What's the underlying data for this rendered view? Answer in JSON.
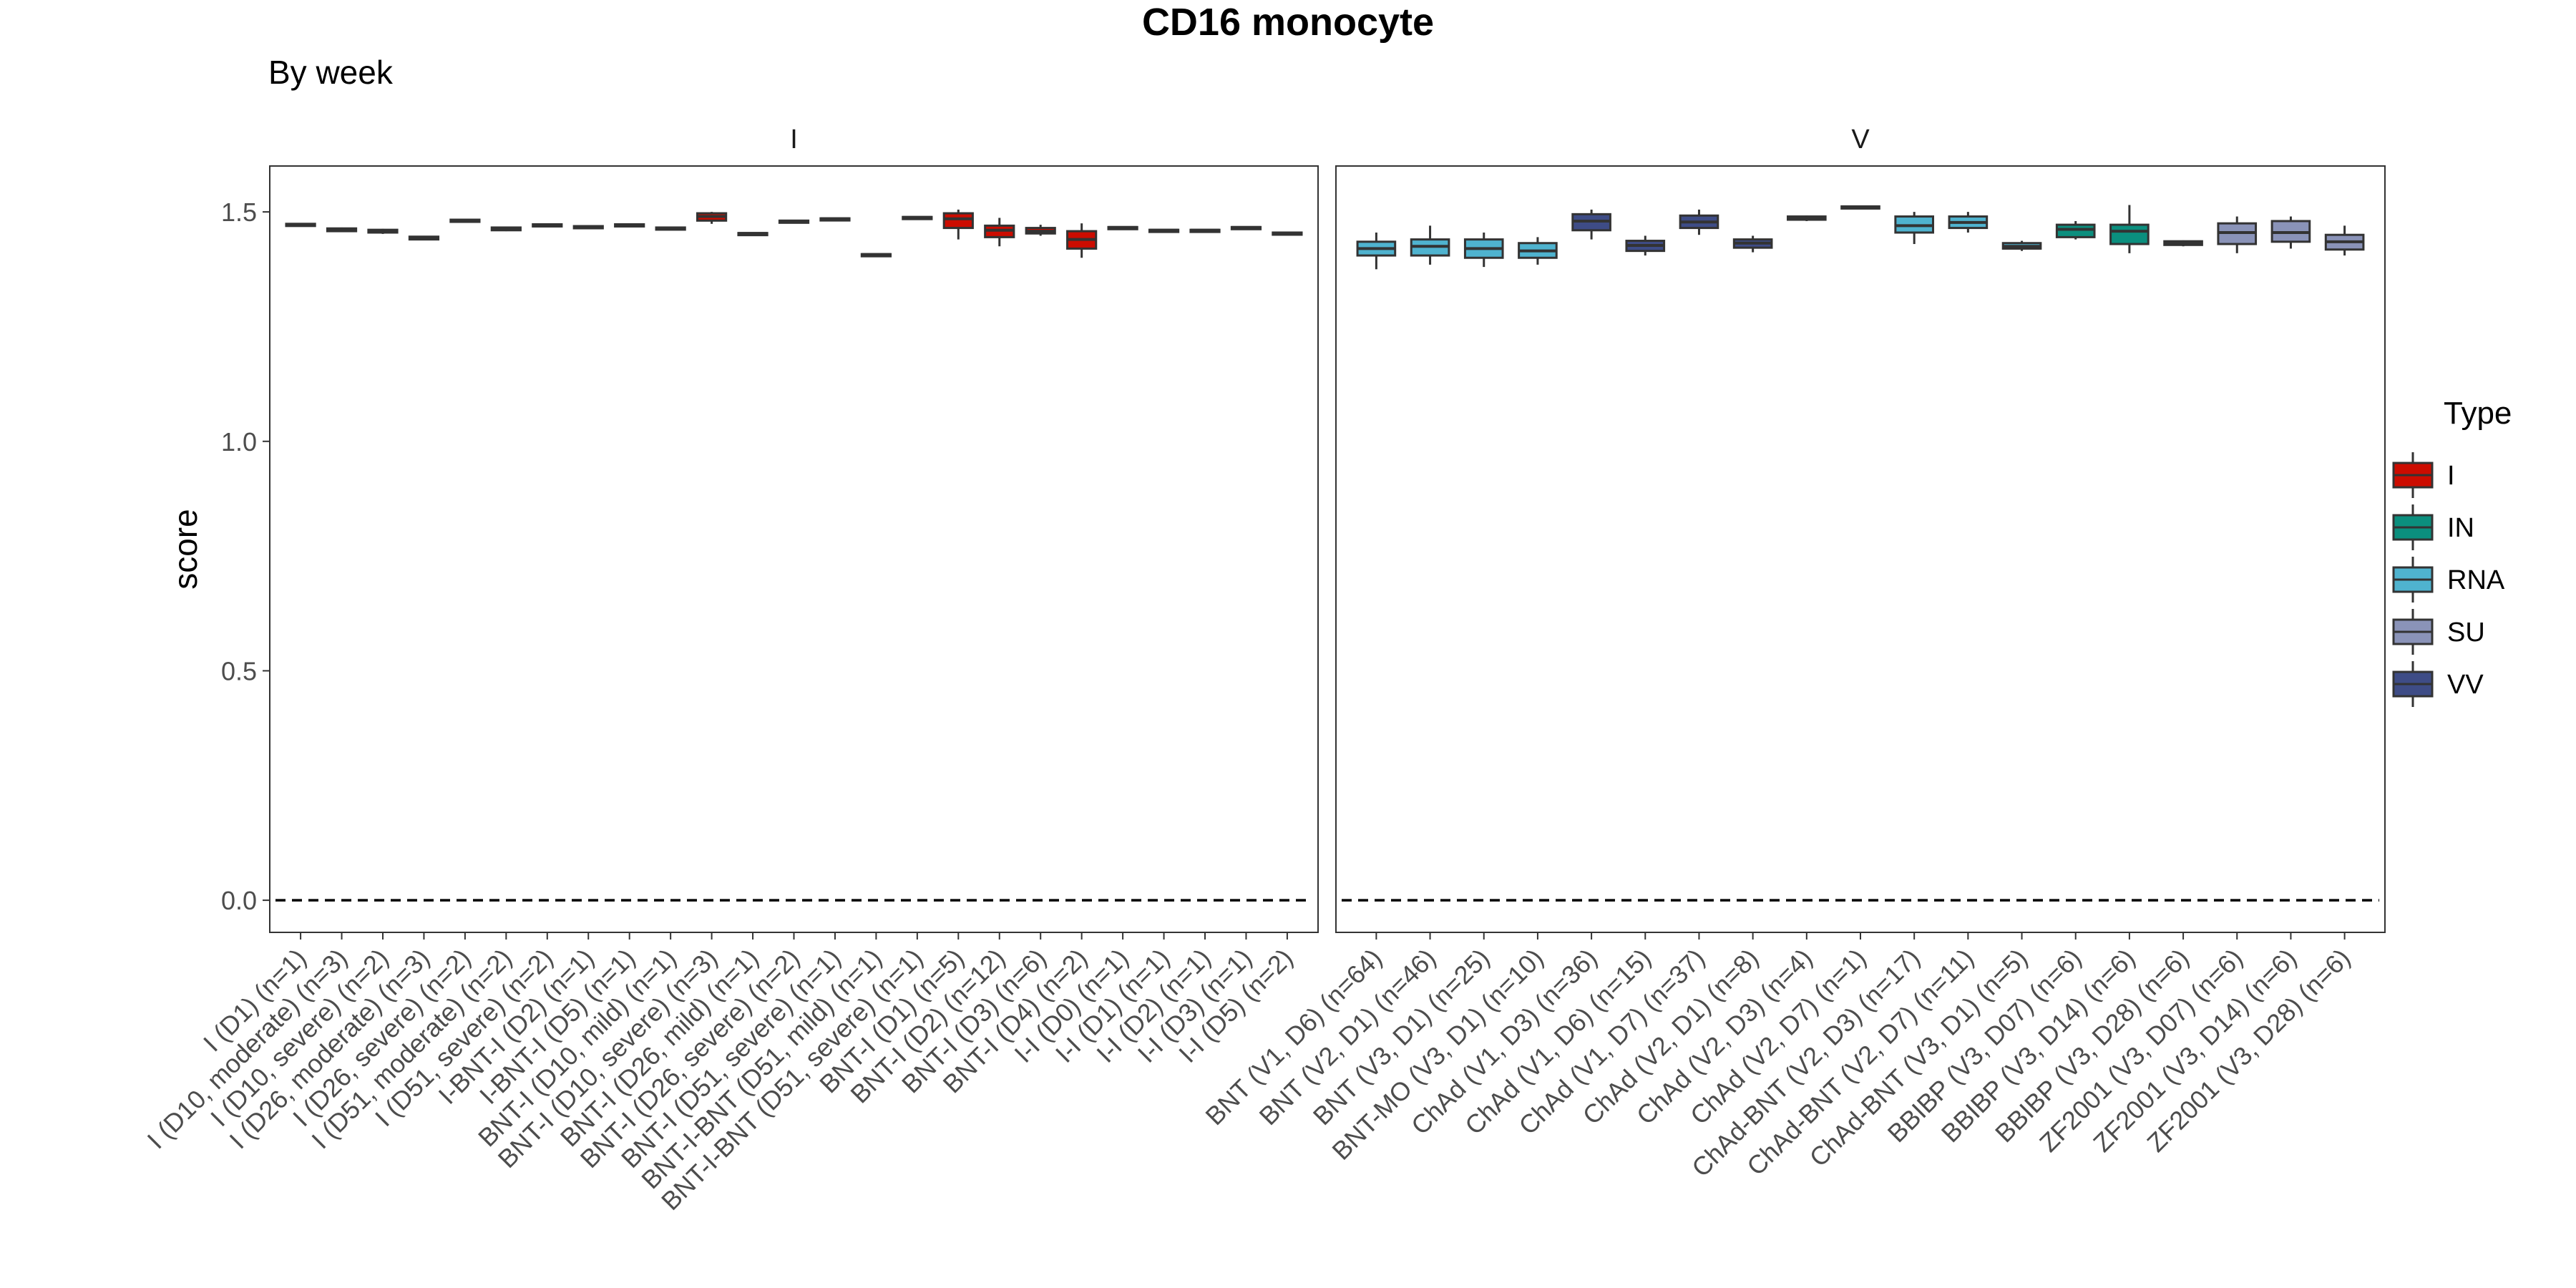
{
  "title": "CD16 monocyte",
  "subtitle": "By week",
  "colors": {
    "I": "#CC0C00",
    "IN": "#0B8F7E",
    "RNA": "#4FB3CF",
    "SU": "#8A93B8",
    "VV": "#3E4C86",
    "box_line": "#333333",
    "panel_border": "#333333",
    "zero_line": "#000000"
  },
  "chart_data": {
    "type": "box",
    "ylabel": "score",
    "xlabel": "",
    "ylim": [
      -0.07,
      1.6
    ],
    "yticks": [
      0.0,
      0.5,
      1.0,
      1.5
    ],
    "ytick_labels": [
      "0.0",
      "0.5",
      "1.0",
      "1.5"
    ],
    "reference_line": {
      "y": 0,
      "style": "dashed"
    },
    "grid": false,
    "legend": {
      "title": "Type",
      "position": "right",
      "entries": [
        "I",
        "IN",
        "RNA",
        "SU",
        "VV"
      ]
    },
    "panels": [
      {
        "label": "I",
        "groups": [
          {
            "label": "I (D1) (n=1)",
            "type": "I",
            "q1": 1.472,
            "median": 1.473,
            "q3": 1.474,
            "whisker_low": 1.472,
            "whisker_high": 1.474
          },
          {
            "label": "I (D10, moderate) (n=3)",
            "type": "I",
            "q1": 1.458,
            "median": 1.461,
            "q3": 1.464,
            "whisker_low": 1.456,
            "whisker_high": 1.466
          },
          {
            "label": "I (D10, severe) (n=2)",
            "type": "I",
            "q1": 1.455,
            "median": 1.458,
            "q3": 1.461,
            "whisker_low": 1.452,
            "whisker_high": 1.463
          },
          {
            "label": "I (D26, moderate) (n=3)",
            "type": "I",
            "q1": 1.44,
            "median": 1.443,
            "q3": 1.446,
            "whisker_low": 1.438,
            "whisker_high": 1.448
          },
          {
            "label": "I (D26, severe) (n=2)",
            "type": "I",
            "q1": 1.479,
            "median": 1.481,
            "q3": 1.483,
            "whisker_low": 1.478,
            "whisker_high": 1.484
          },
          {
            "label": "I (D51, moderate) (n=2)",
            "type": "I",
            "q1": 1.46,
            "median": 1.463,
            "q3": 1.466,
            "whisker_low": 1.458,
            "whisker_high": 1.468
          },
          {
            "label": "I (D51, severe) (n=2)",
            "type": "I",
            "q1": 1.469,
            "median": 1.471,
            "q3": 1.473,
            "whisker_low": 1.468,
            "whisker_high": 1.474
          },
          {
            "label": "I-BNT-I (D2) (n=1)",
            "type": "I",
            "q1": 1.467,
            "median": 1.468,
            "q3": 1.469,
            "whisker_low": 1.467,
            "whisker_high": 1.469
          },
          {
            "label": "I-BNT-I (D5) (n=1)",
            "type": "I",
            "q1": 1.471,
            "median": 1.472,
            "q3": 1.473,
            "whisker_low": 1.471,
            "whisker_high": 1.473
          },
          {
            "label": "BNT-I (D10, mild) (n=1)",
            "type": "I",
            "q1": 1.464,
            "median": 1.465,
            "q3": 1.466,
            "whisker_low": 1.464,
            "whisker_high": 1.466
          },
          {
            "label": "BNT-I (D10, severe) (n=3)",
            "type": "I",
            "q1": 1.481,
            "median": 1.49,
            "q3": 1.497,
            "whisker_low": 1.474,
            "whisker_high": 1.5
          },
          {
            "label": "BNT-I (D26, mild) (n=1)",
            "type": "I",
            "q1": 1.452,
            "median": 1.453,
            "q3": 1.454,
            "whisker_low": 1.452,
            "whisker_high": 1.454
          },
          {
            "label": "BNT-I (D26, severe) (n=2)",
            "type": "I",
            "q1": 1.477,
            "median": 1.479,
            "q3": 1.481,
            "whisker_low": 1.476,
            "whisker_high": 1.482
          },
          {
            "label": "BNT-I (D51, severe) (n=1)",
            "type": "I",
            "q1": 1.484,
            "median": 1.485,
            "q3": 1.486,
            "whisker_low": 1.484,
            "whisker_high": 1.486
          },
          {
            "label": "BNT-I-BNT (D51, mild) (n=1)",
            "type": "I",
            "q1": 1.406,
            "median": 1.407,
            "q3": 1.408,
            "whisker_low": 1.406,
            "whisker_high": 1.408
          },
          {
            "label": "BNT-I-BNT (D51, severe) (n=1)",
            "type": "I",
            "q1": 1.487,
            "median": 1.488,
            "q3": 1.489,
            "whisker_low": 1.487,
            "whisker_high": 1.489
          },
          {
            "label": "BNT-I (D1) (n=5)",
            "type": "I",
            "q1": 1.465,
            "median": 1.485,
            "q3": 1.497,
            "whisker_low": 1.44,
            "whisker_high": 1.505
          },
          {
            "label": "BNT-I (D2) (n=12)",
            "type": "I",
            "q1": 1.445,
            "median": 1.46,
            "q3": 1.47,
            "whisker_low": 1.425,
            "whisker_high": 1.487
          },
          {
            "label": "BNT-I (D3) (n=6)",
            "type": "I",
            "q1": 1.453,
            "median": 1.458,
            "q3": 1.465,
            "whisker_low": 1.448,
            "whisker_high": 1.472
          },
          {
            "label": "BNT-I (D4) (n=2)",
            "type": "I",
            "q1": 1.42,
            "median": 1.44,
            "q3": 1.458,
            "whisker_low": 1.4,
            "whisker_high": 1.475
          },
          {
            "label": "I-I (D0) (n=1)",
            "type": "I",
            "q1": 1.465,
            "median": 1.466,
            "q3": 1.467,
            "whisker_low": 1.465,
            "whisker_high": 1.467
          },
          {
            "label": "I-I (D1) (n=1)",
            "type": "I",
            "q1": 1.459,
            "median": 1.46,
            "q3": 1.461,
            "whisker_low": 1.459,
            "whisker_high": 1.461
          },
          {
            "label": "I-I (D2) (n=1)",
            "type": "I",
            "q1": 1.459,
            "median": 1.46,
            "q3": 1.461,
            "whisker_low": 1.459,
            "whisker_high": 1.461
          },
          {
            "label": "I-I (D3) (n=1)",
            "type": "I",
            "q1": 1.465,
            "median": 1.466,
            "q3": 1.467,
            "whisker_low": 1.465,
            "whisker_high": 1.467
          },
          {
            "label": "I-I (D5) (n=2)",
            "type": "I",
            "q1": 1.451,
            "median": 1.453,
            "q3": 1.455,
            "whisker_low": 1.45,
            "whisker_high": 1.456
          }
        ]
      },
      {
        "label": "V",
        "groups": [
          {
            "label": "BNT (V1, D6) (n=64)",
            "type": "RNA",
            "q1": 1.405,
            "median": 1.42,
            "q3": 1.435,
            "whisker_low": 1.375,
            "whisker_high": 1.455
          },
          {
            "label": "BNT (V2, D1) (n=46)",
            "type": "RNA",
            "q1": 1.405,
            "median": 1.425,
            "q3": 1.44,
            "whisker_low": 1.385,
            "whisker_high": 1.47
          },
          {
            "label": "BNT (V3, D1) (n=25)",
            "type": "RNA",
            "q1": 1.4,
            "median": 1.42,
            "q3": 1.44,
            "whisker_low": 1.38,
            "whisker_high": 1.455
          },
          {
            "label": "BNT-MO (V3, D1) (n=10)",
            "type": "RNA",
            "q1": 1.4,
            "median": 1.415,
            "q3": 1.432,
            "whisker_low": 1.385,
            "whisker_high": 1.445
          },
          {
            "label": "ChAd (V1, D3) (n=36)",
            "type": "VV",
            "q1": 1.46,
            "median": 1.48,
            "q3": 1.495,
            "whisker_low": 1.44,
            "whisker_high": 1.505
          },
          {
            "label": "ChAd (V1, D6) (n=15)",
            "type": "VV",
            "q1": 1.415,
            "median": 1.427,
            "q3": 1.437,
            "whisker_low": 1.405,
            "whisker_high": 1.448
          },
          {
            "label": "ChAd (V1, D7) (n=37)",
            "type": "VV",
            "q1": 1.465,
            "median": 1.478,
            "q3": 1.492,
            "whisker_low": 1.45,
            "whisker_high": 1.505
          },
          {
            "label": "ChAd (V2, D1) (n=8)",
            "type": "VV",
            "q1": 1.422,
            "median": 1.432,
            "q3": 1.44,
            "whisker_low": 1.412,
            "whisker_high": 1.448
          },
          {
            "label": "ChAd (V2, D3) (n=4)",
            "type": "VV",
            "q1": 1.483,
            "median": 1.487,
            "q3": 1.49,
            "whisker_low": 1.48,
            "whisker_high": 1.492
          },
          {
            "label": "ChAd (V2, D7) (n=1)",
            "type": "VV",
            "q1": 1.508,
            "median": 1.51,
            "q3": 1.512,
            "whisker_low": 1.508,
            "whisker_high": 1.512
          },
          {
            "label": "ChAd-BNT (V2, D3) (n=17)",
            "type": "RNA",
            "q1": 1.455,
            "median": 1.47,
            "q3": 1.49,
            "whisker_low": 1.43,
            "whisker_high": 1.5
          },
          {
            "label": "ChAd-BNT (V2, D7) (n=11)",
            "type": "RNA",
            "q1": 1.465,
            "median": 1.477,
            "q3": 1.49,
            "whisker_low": 1.455,
            "whisker_high": 1.5
          },
          {
            "label": "ChAd-BNT (V3, D1) (n=5)",
            "type": "RNA",
            "q1": 1.42,
            "median": 1.425,
            "q3": 1.432,
            "whisker_low": 1.415,
            "whisker_high": 1.437
          },
          {
            "label": "BBIBP (V3, D07) (n=6)",
            "type": "IN",
            "q1": 1.445,
            "median": 1.462,
            "q3": 1.472,
            "whisker_low": 1.44,
            "whisker_high": 1.48
          },
          {
            "label": "BBIBP (V3, D14) (n=6)",
            "type": "IN",
            "q1": 1.43,
            "median": 1.458,
            "q3": 1.472,
            "whisker_low": 1.41,
            "whisker_high": 1.515
          },
          {
            "label": "BBIBP (V3, D28) (n=6)",
            "type": "IN",
            "q1": 1.428,
            "median": 1.432,
            "q3": 1.436,
            "whisker_low": 1.425,
            "whisker_high": 1.438
          },
          {
            "label": "ZF2001 (V3, D07) (n=6)",
            "type": "SU",
            "q1": 1.43,
            "median": 1.455,
            "q3": 1.475,
            "whisker_low": 1.41,
            "whisker_high": 1.49
          },
          {
            "label": "ZF2001 (V3, D14) (n=6)",
            "type": "SU",
            "q1": 1.435,
            "median": 1.455,
            "q3": 1.48,
            "whisker_low": 1.42,
            "whisker_high": 1.49
          },
          {
            "label": "ZF2001 (V3, D28) (n=6)",
            "type": "SU",
            "q1": 1.418,
            "median": 1.435,
            "q3": 1.45,
            "whisker_low": 1.405,
            "whisker_high": 1.47
          }
        ]
      }
    ]
  }
}
